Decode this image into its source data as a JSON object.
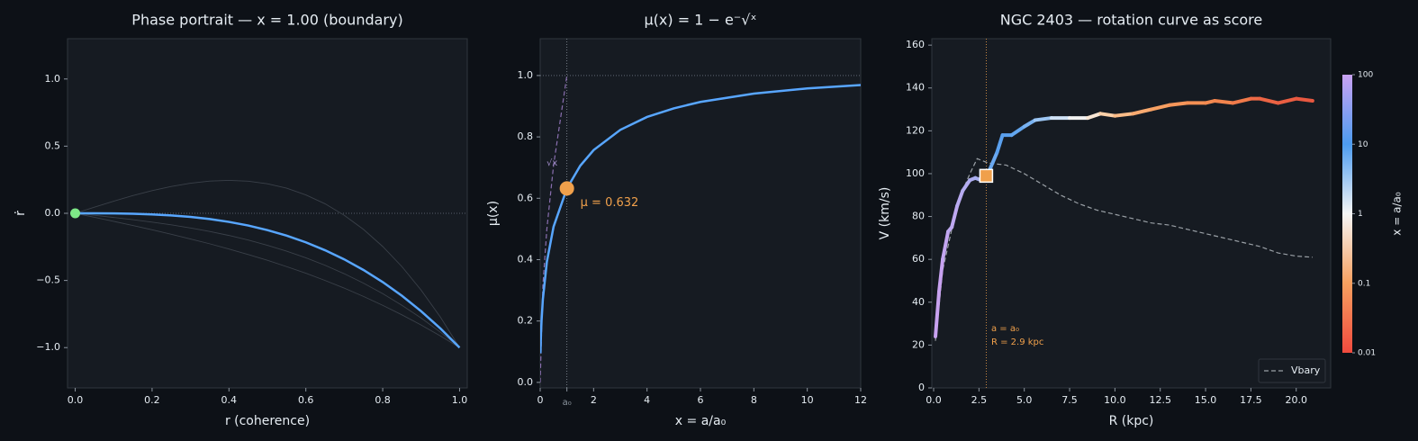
{
  "chart_data": [
    {
      "type": "line",
      "title": "Phase portrait — x = 1.00 (boundary)",
      "x_label": "r (coherence)",
      "y_label": "ṙ",
      "x": [
        0,
        0.05,
        0.1,
        0.15,
        0.2,
        0.25,
        0.3,
        0.35,
        0.4,
        0.45,
        0.5,
        0.55,
        0.6,
        0.65,
        0.7,
        0.75,
        0.8,
        0.85,
        0.9,
        0.95,
        1
      ],
      "series": [
        {
          "color": "#3a4049",
          "width": 0.9,
          "values": [
            0,
            0.046,
            0.09,
            0.132,
            0.169,
            0.2,
            0.224,
            0.24,
            0.245,
            0.239,
            0.22,
            0.187,
            0.137,
            0.071,
            -0.015,
            -0.12,
            -0.247,
            -0.397,
            -0.572,
            -0.772,
            -1
          ]
        },
        {
          "color": "#3a4049",
          "width": 0.9,
          "values": [
            0,
            -0.015,
            -0.031,
            -0.047,
            -0.066,
            -0.086,
            -0.109,
            -0.135,
            -0.165,
            -0.199,
            -0.238,
            -0.282,
            -0.331,
            -0.387,
            -0.45,
            -0.52,
            -0.598,
            -0.685,
            -0.78,
            -0.885,
            -1
          ]
        },
        {
          "color": "#3a4049",
          "width": 0.9,
          "values": [
            0,
            -0.03,
            -0.06,
            -0.091,
            -0.123,
            -0.156,
            -0.191,
            -0.227,
            -0.266,
            -0.307,
            -0.35,
            -0.397,
            -0.446,
            -0.5,
            -0.557,
            -0.619,
            -0.685,
            -0.756,
            -0.832,
            -0.913,
            -1
          ]
        },
        {
          "color": "#58a6ff",
          "width": 2.5,
          "values": [
            0,
            -0.0001,
            -0.001,
            -0.003,
            -0.008,
            -0.016,
            -0.027,
            -0.043,
            -0.064,
            -0.091,
            -0.125,
            -0.166,
            -0.216,
            -0.275,
            -0.343,
            -0.422,
            -0.512,
            -0.614,
            -0.729,
            -0.857,
            -1
          ]
        }
      ],
      "xlim": [
        -0.02,
        1.02
      ],
      "ylim": [
        -1.3,
        1.3
      ],
      "xticks": [
        {
          "value": 0,
          "label": "0.0"
        },
        0.2,
        0.4,
        0.6,
        0.8,
        {
          "value": 1,
          "label": "1.0"
        }
      ],
      "yticks": [
        {
          "value": -1,
          "label": "−1.0"
        },
        {
          "value": -0.5,
          "label": "−0.5"
        },
        {
          "value": 0,
          "label": "0.0"
        },
        0.5,
        {
          "value": 1,
          "label": "1.0"
        }
      ],
      "hlines": [
        0
      ],
      "marker": {
        "x": 0,
        "y": 0,
        "color": "#7ee787"
      }
    },
    {
      "type": "line",
      "title": "μ(x) = 1 − e⁻√ˣ",
      "x_label": "x = a/a₀",
      "y_label": "μ(x)",
      "x": [
        0.01,
        0.03,
        0.05,
        0.1,
        0.25,
        0.5,
        1,
        1.5,
        2,
        3,
        4,
        5,
        6,
        8,
        10,
        12
      ],
      "series": [
        {
          "color": "#8a6fb0",
          "width": 1.2,
          "style": "dashed",
          "x": [
            0,
            0.1,
            0.25,
            0.5,
            1
          ],
          "values": [
            0,
            0.316,
            0.5,
            0.707,
            1
          ]
        },
        {
          "color": "#58a6ff",
          "width": 2.5,
          "values": [
            0.095,
            0.159,
            0.2,
            0.271,
            0.393,
            0.507,
            0.632,
            0.706,
            0.757,
            0.823,
            0.865,
            0.893,
            0.914,
            0.941,
            0.958,
            0.969
          ]
        }
      ],
      "xlim": [
        0,
        12
      ],
      "ylim": [
        -0.018,
        1.12
      ],
      "xticks": [
        0,
        {
          "value": 1,
          "label": "a₀"
        },
        2,
        4,
        6,
        8,
        10,
        12
      ],
      "yticks": [
        {
          "value": 0,
          "label": "0.0"
        },
        0.2,
        0.4,
        0.6,
        0.8,
        {
          "value": 1,
          "label": "1.0"
        }
      ],
      "vlines": [
        1
      ],
      "hlines": [
        1
      ],
      "annotations": [
        "√x"
      ],
      "marker": {
        "x": 1,
        "y": 0.632,
        "label": "μ = 0.632",
        "color": "#f0a04b"
      }
    },
    {
      "type": "line",
      "title": "NGC 2403 — rotation curve as score",
      "x_label": "R (kpc)",
      "y_label": "V (km/s)",
      "series": [
        {
          "name": "Vbary",
          "color": "#9aa0a6",
          "width": 1.2,
          "style": "dashed",
          "x": [
            0.1,
            0.5,
            1.0,
            1.5,
            2.0,
            2.4,
            3.0,
            4.0,
            5.0,
            6.0,
            7.0,
            8.0,
            9.0,
            10.0,
            11.0,
            12.0,
            13.0,
            14.0,
            15.0,
            16.0,
            17.0,
            18.0,
            19.0,
            20.0,
            20.9
          ],
          "values": [
            22,
            55,
            74,
            90,
            100,
            107,
            105,
            104,
            100,
            95,
            90,
            86,
            83,
            81,
            79,
            77,
            76,
            74,
            72,
            70,
            68,
            66,
            63,
            61.5,
            61
          ]
        },
        {
          "width": 4,
          "x": [
            0.1,
            0.3,
            0.5,
            0.8,
            1.0,
            1.3,
            1.6,
            2.0,
            2.3,
            2.6,
            3.0,
            3.5,
            3.8,
            4.3,
            5.0,
            5.6,
            6.5,
            7.5,
            8.5,
            9.2,
            10.0,
            11.0,
            12.0,
            13.0,
            14.0,
            15.0,
            15.5,
            16.5,
            17.5,
            18.0,
            19.0,
            20.0,
            20.9
          ],
          "values": [
            24,
            45,
            60,
            73,
            75,
            85,
            92,
            97,
            98,
            97,
            100,
            110,
            118,
            118,
            122,
            125,
            126,
            126,
            126,
            128,
            127,
            128,
            130,
            132,
            133,
            133,
            134,
            133,
            135,
            135,
            133,
            135,
            134
          ],
          "colors": [
            "#c8a2f0",
            "#c8a2f0",
            "#c3a5f0",
            "#bea8f0",
            "#bea8f0",
            "#b8aaf0",
            "#b3acf0",
            "#aeadf0",
            "#a8aff0",
            "#a0b2f0",
            "#6aa8f0",
            "#5aa0ee",
            "#5aa0ee",
            "#63a6ef",
            "#78b2f1",
            "#9cc6f4",
            "#d0e2f6",
            "#f2f2f2",
            "#f8e6d4",
            "#fcd0a8",
            "#fbbc88",
            "#f9aa70",
            "#f7a062",
            "#f5965a",
            "#f49054",
            "#f38a50",
            "#f2844d",
            "#f07a4a",
            "#ee6a46",
            "#ec6444",
            "#ea5e42",
            "#e85840",
            "#e75440"
          ]
        }
      ],
      "xlim": [
        -0.1,
        21.9
      ],
      "ylim": [
        0,
        163
      ],
      "xticks": [
        {
          "value": 0,
          "label": "0.0"
        },
        2.5,
        {
          "value": 5,
          "label": "5.0"
        },
        7.5,
        {
          "value": 10,
          "label": "10.0"
        },
        12.5,
        {
          "value": 15,
          "label": "15.0"
        },
        17.5,
        {
          "value": 20,
          "label": "20.0"
        }
      ],
      "yticks": [
        0,
        20,
        40,
        60,
        80,
        100,
        120,
        140,
        160
      ],
      "vlines": [
        2.9
      ],
      "annotations": [
        "a = a₀",
        "R = 2.9 kpc"
      ],
      "marker": {
        "x": 2.9,
        "y": 99,
        "color": "#f0a04b",
        "shape": "square"
      },
      "legend": "lower right",
      "colorbar": {
        "label": "x = a/a₀",
        "log": true,
        "lim": [
          0.01,
          100
        ],
        "ticks": [
          0.01,
          0.1,
          1,
          10,
          100
        ],
        "colors": [
          "#f04a3e",
          "#f7a060",
          "#f5f5f5",
          "#4d9cf0",
          "#c9a2f2"
        ]
      }
    }
  ]
}
